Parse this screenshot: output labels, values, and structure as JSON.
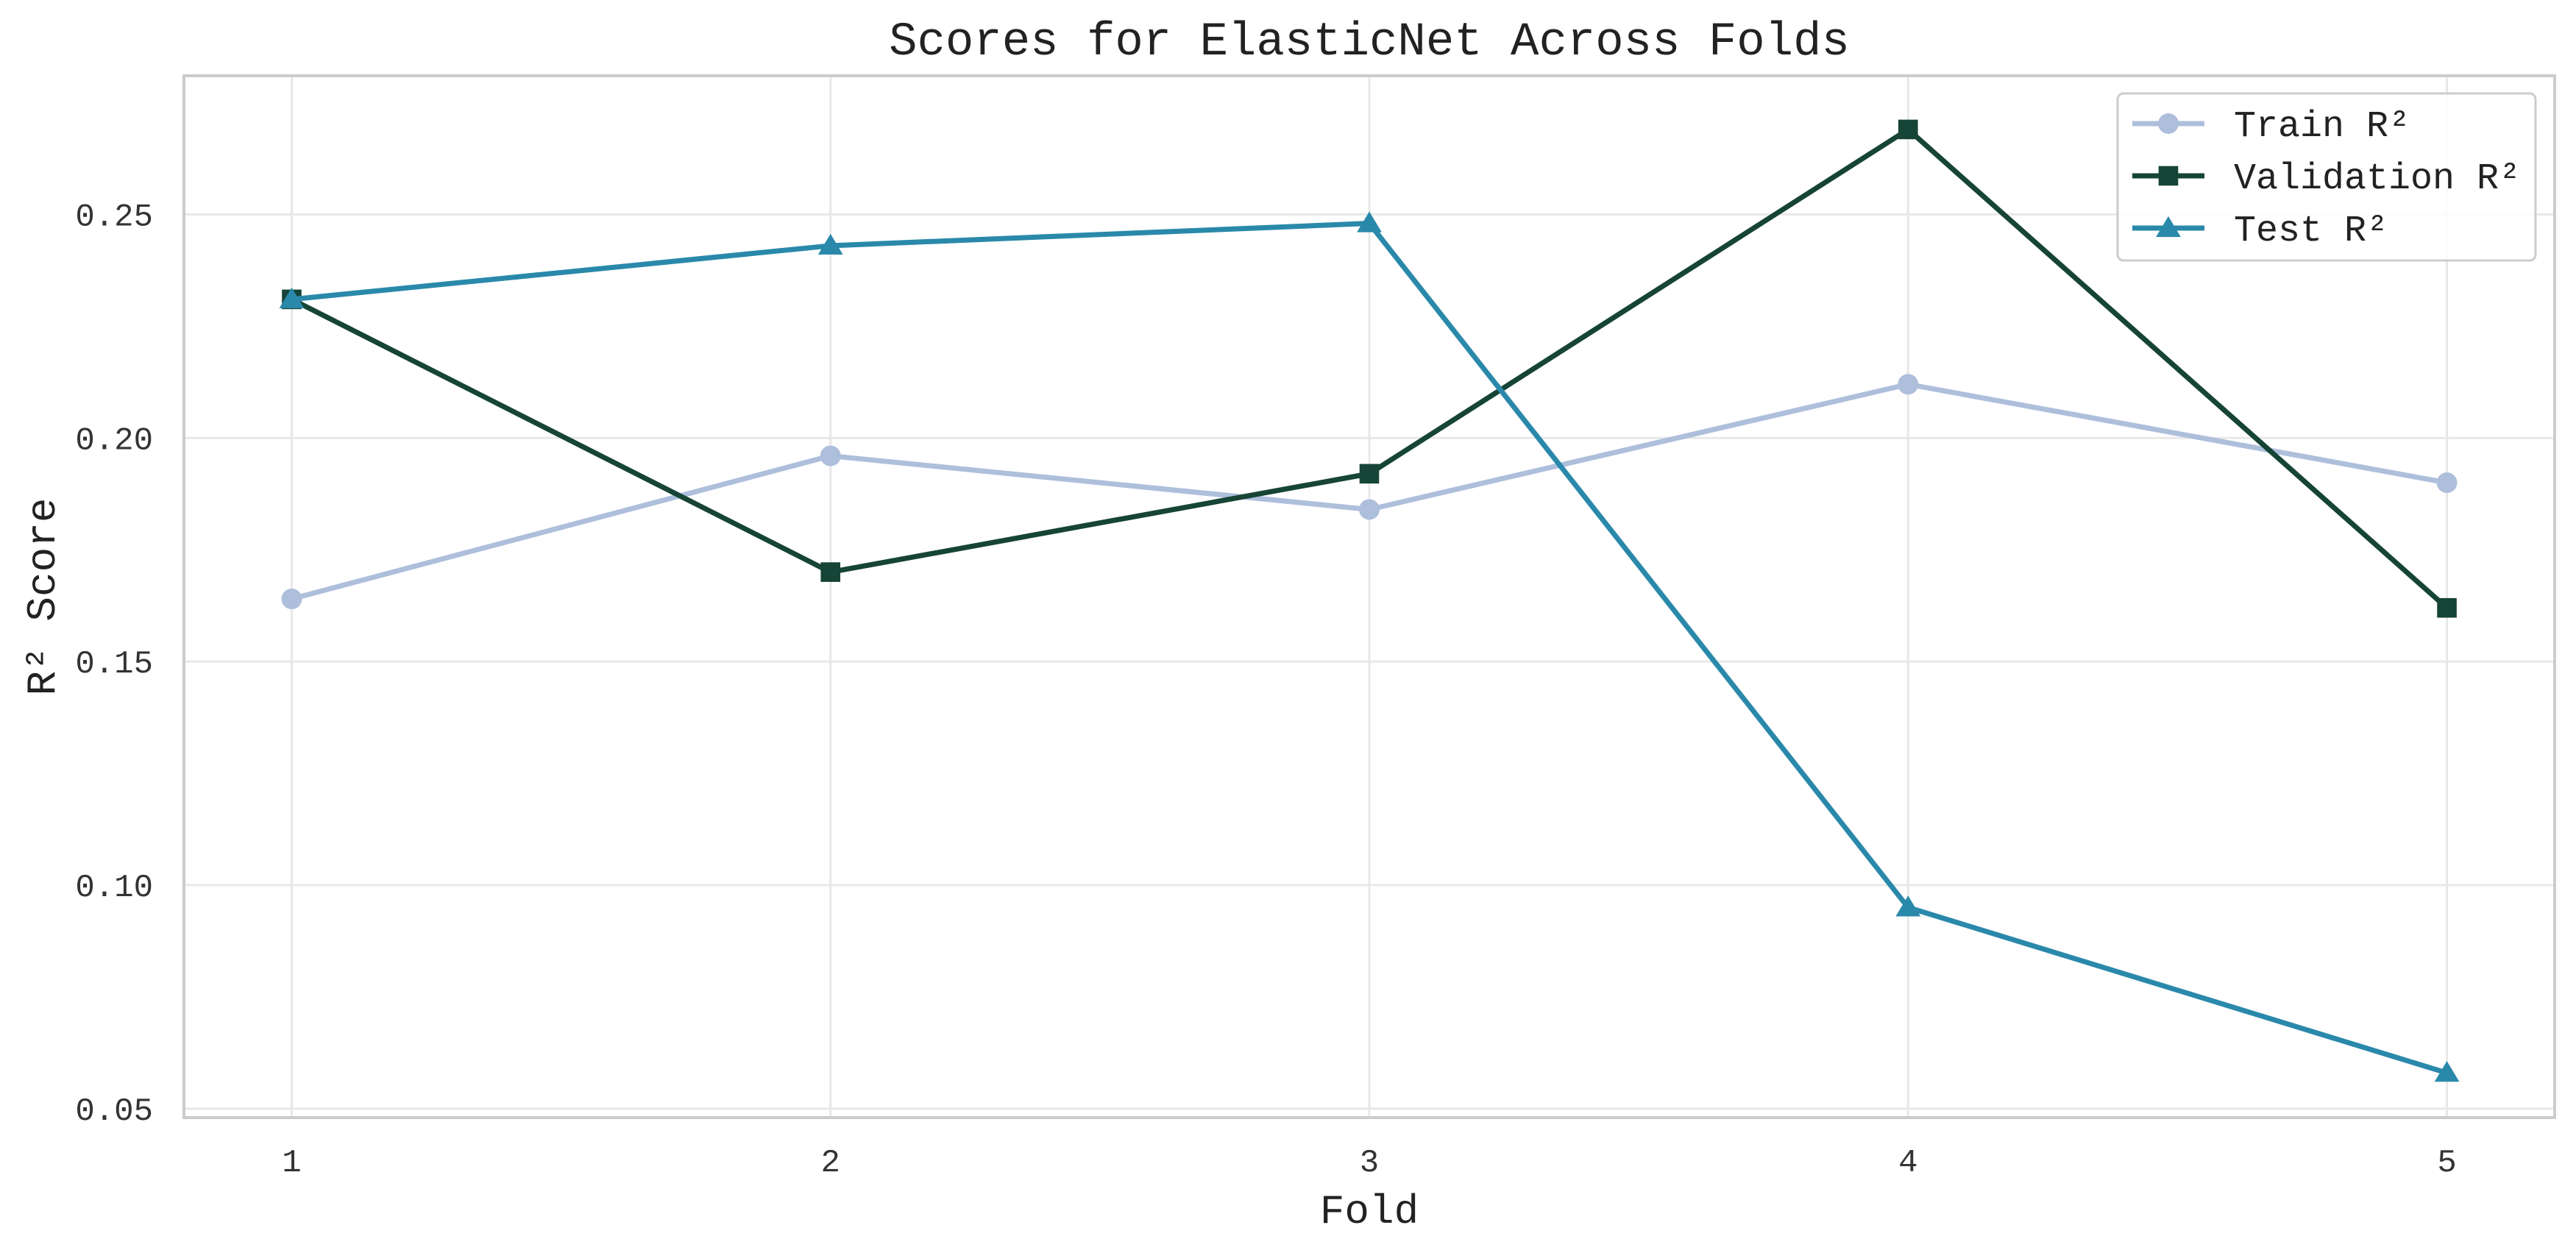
{
  "chart_data": {
    "type": "line",
    "title": "Scores for ElasticNet Across Folds",
    "xlabel": "Fold",
    "ylabel": "R² Score",
    "x": [
      1,
      2,
      3,
      4,
      5
    ],
    "xlim": [
      0.8,
      5.2
    ],
    "ylim": [
      0.048,
      0.281
    ],
    "yticks": [
      0.05,
      0.1,
      0.15,
      0.2,
      0.25
    ],
    "ytick_labels": [
      "0.05",
      "0.10",
      "0.15",
      "0.20",
      "0.25"
    ],
    "xtick_labels": [
      "1",
      "2",
      "3",
      "4",
      "5"
    ],
    "grid": true,
    "legend_position": "top-right",
    "series": [
      {
        "name": "Train R²",
        "marker": "circle",
        "color": "#aebfdc",
        "values": [
          0.164,
          0.196,
          0.184,
          0.212,
          0.19
        ]
      },
      {
        "name": "Validation R²",
        "marker": "square",
        "color": "#164436",
        "values": [
          0.231,
          0.17,
          0.192,
          0.269,
          0.162
        ]
      },
      {
        "name": "Test R²",
        "marker": "triangle",
        "color": "#2a89ab",
        "values": [
          0.231,
          0.243,
          0.248,
          0.095,
          0.058
        ]
      }
    ]
  }
}
